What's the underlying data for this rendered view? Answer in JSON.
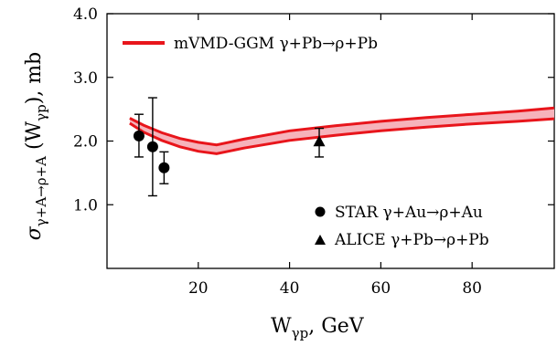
{
  "chart_data": {
    "type": "line",
    "xlabel": "W",
    "xlabel_sub": "γp",
    "xlabel_unit": ", GeV",
    "ylabel": "σ",
    "ylabel_sub": "γ+A→ρ+A",
    "ylabel_rest": " (W",
    "ylabel_rest_sub": "γp",
    "ylabel_unit": "), mb",
    "xlim": [
      0,
      98
    ],
    "ylim": [
      0.0,
      4.0
    ],
    "xticks": [
      20,
      40,
      60,
      80
    ],
    "yticks": [
      1.0,
      2.0,
      3.0,
      4.0
    ],
    "ytick_labels": [
      "1.0",
      "2.0",
      "3.0",
      "4.0"
    ],
    "grid": false,
    "legend_top_position": "top-left",
    "legend_bottom_position": "bottom-right",
    "band": {
      "name": "mVMD-GGM  γ+Pb→ρ+Pb",
      "color": "#e8151b",
      "fill": "#f6b3bb",
      "x": [
        5,
        8,
        12,
        16,
        20,
        24,
        30,
        40,
        50,
        60,
        70,
        80,
        90,
        98
      ],
      "upper": [
        2.36,
        2.25,
        2.13,
        2.04,
        1.98,
        1.94,
        2.03,
        2.16,
        2.24,
        2.31,
        2.37,
        2.42,
        2.47,
        2.52
      ],
      "lower": [
        2.28,
        2.14,
        2.01,
        1.91,
        1.84,
        1.8,
        1.89,
        2.01,
        2.09,
        2.16,
        2.22,
        2.27,
        2.31,
        2.35
      ]
    },
    "series": [
      {
        "name": "STAR γ+Au→ρ+Au",
        "marker": "circle",
        "color": "#000000",
        "points": [
          {
            "x": 7.0,
            "y": 2.08,
            "lo": 1.75,
            "hi": 2.42
          },
          {
            "x": 10.0,
            "y": 1.91,
            "lo": 1.14,
            "hi": 2.68
          },
          {
            "x": 12.5,
            "y": 1.58,
            "lo": 1.33,
            "hi": 1.83
          }
        ]
      },
      {
        "name": "ALICE γ+Pb→ρ+Pb",
        "marker": "triangle",
        "color": "#000000",
        "points": [
          {
            "x": 46.5,
            "y": 1.99,
            "lo": 1.75,
            "hi": 2.2
          }
        ]
      }
    ]
  }
}
